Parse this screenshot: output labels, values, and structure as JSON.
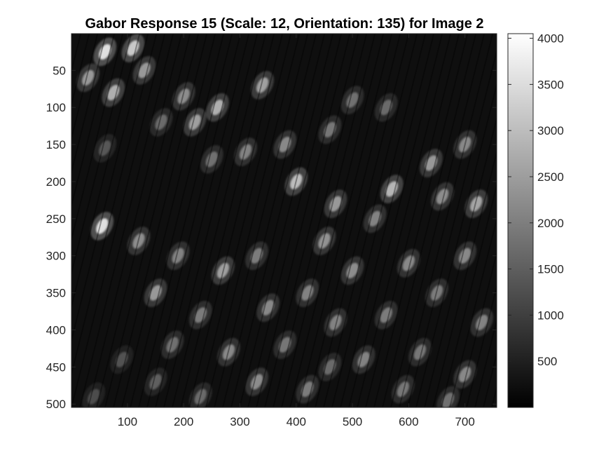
{
  "chart_data": {
    "type": "heatmap",
    "title": "Gabor Response 15 (Scale: 12, Orientation: 135) for Image 2",
    "xlabel": "",
    "ylabel": "",
    "x_ticks": [
      100,
      200,
      300,
      400,
      500,
      600,
      700
    ],
    "y_ticks": [
      50,
      100,
      150,
      200,
      250,
      300,
      350,
      400,
      450,
      500
    ],
    "x_range": [
      1,
      756
    ],
    "y_range": [
      1,
      504
    ],
    "y_direction": "reversed",
    "colormap": "gray",
    "colorbar": {
      "ticks": [
        500,
        1000,
        1500,
        2000,
        2500,
        3000,
        3500,
        4000
      ],
      "range": [
        0,
        4050
      ],
      "placement": "right"
    },
    "grid": false,
    "colors": {
      "low": "#000000",
      "high": "#ffffff",
      "axis": "#262626"
    },
    "blobs": [
      {
        "x": 60,
        "y": 25,
        "v": 3800
      },
      {
        "x": 110,
        "y": 20,
        "v": 3400
      },
      {
        "x": 30,
        "y": 60,
        "v": 2600
      },
      {
        "x": 75,
        "y": 80,
        "v": 3000
      },
      {
        "x": 130,
        "y": 50,
        "v": 2600
      },
      {
        "x": 200,
        "y": 85,
        "v": 2400
      },
      {
        "x": 260,
        "y": 100,
        "v": 3000
      },
      {
        "x": 340,
        "y": 70,
        "v": 2700
      },
      {
        "x": 220,
        "y": 120,
        "v": 2700
      },
      {
        "x": 160,
        "y": 120,
        "v": 1800
      },
      {
        "x": 500,
        "y": 90,
        "v": 1900
      },
      {
        "x": 560,
        "y": 100,
        "v": 1800
      },
      {
        "x": 460,
        "y": 130,
        "v": 2000
      },
      {
        "x": 700,
        "y": 150,
        "v": 2300
      },
      {
        "x": 640,
        "y": 175,
        "v": 2600
      },
      {
        "x": 380,
        "y": 150,
        "v": 2300
      },
      {
        "x": 310,
        "y": 160,
        "v": 2200
      },
      {
        "x": 250,
        "y": 170,
        "v": 1900
      },
      {
        "x": 60,
        "y": 155,
        "v": 1500
      },
      {
        "x": 400,
        "y": 200,
        "v": 3200
      },
      {
        "x": 470,
        "y": 230,
        "v": 2600
      },
      {
        "x": 570,
        "y": 210,
        "v": 3100
      },
      {
        "x": 660,
        "y": 220,
        "v": 2400
      },
      {
        "x": 720,
        "y": 230,
        "v": 2800
      },
      {
        "x": 540,
        "y": 250,
        "v": 2200
      },
      {
        "x": 55,
        "y": 260,
        "v": 3800
      },
      {
        "x": 120,
        "y": 280,
        "v": 2400
      },
      {
        "x": 190,
        "y": 300,
        "v": 2200
      },
      {
        "x": 270,
        "y": 320,
        "v": 2700
      },
      {
        "x": 330,
        "y": 300,
        "v": 2100
      },
      {
        "x": 450,
        "y": 280,
        "v": 2500
      },
      {
        "x": 500,
        "y": 320,
        "v": 2400
      },
      {
        "x": 600,
        "y": 310,
        "v": 2300
      },
      {
        "x": 700,
        "y": 300,
        "v": 2300
      },
      {
        "x": 150,
        "y": 350,
        "v": 2600
      },
      {
        "x": 230,
        "y": 380,
        "v": 2100
      },
      {
        "x": 350,
        "y": 370,
        "v": 2300
      },
      {
        "x": 420,
        "y": 350,
        "v": 2200
      },
      {
        "x": 470,
        "y": 390,
        "v": 2200
      },
      {
        "x": 560,
        "y": 380,
        "v": 2100
      },
      {
        "x": 650,
        "y": 350,
        "v": 2100
      },
      {
        "x": 730,
        "y": 390,
        "v": 2200
      },
      {
        "x": 180,
        "y": 420,
        "v": 1900
      },
      {
        "x": 280,
        "y": 430,
        "v": 2300
      },
      {
        "x": 380,
        "y": 420,
        "v": 2000
      },
      {
        "x": 520,
        "y": 440,
        "v": 2200
      },
      {
        "x": 620,
        "y": 430,
        "v": 2000
      },
      {
        "x": 700,
        "y": 460,
        "v": 2300
      },
      {
        "x": 90,
        "y": 440,
        "v": 1400
      },
      {
        "x": 330,
        "y": 470,
        "v": 2400
      },
      {
        "x": 420,
        "y": 480,
        "v": 2100
      },
      {
        "x": 590,
        "y": 480,
        "v": 2000
      },
      {
        "x": 230,
        "y": 490,
        "v": 1800
      },
      {
        "x": 670,
        "y": 495,
        "v": 1900
      },
      {
        "x": 40,
        "y": 490,
        "v": 1300
      },
      {
        "x": 150,
        "y": 470,
        "v": 1600
      },
      {
        "x": 460,
        "y": 450,
        "v": 1800
      }
    ]
  }
}
